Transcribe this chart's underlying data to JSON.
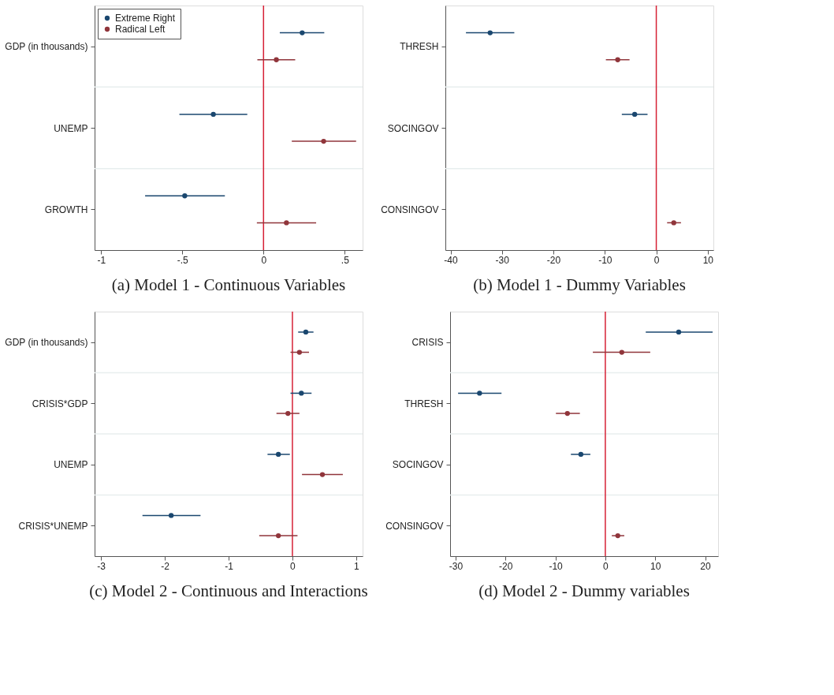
{
  "chart_data": [
    {
      "type": "scatter",
      "orientation": "horizontal",
      "title": "(a) Model 1 - Continuous Variables",
      "categories": [
        "GDP (in thousands)",
        "UNEMP",
        "GROWTH"
      ],
      "series": [
        {
          "name": "Extreme Right",
          "color": "#1a476f",
          "values": [
            0.238,
            -0.309,
            -0.485
          ],
          "errors": [
            [
              0.1,
              0.374
            ],
            [
              -0.518,
              -0.1
            ],
            [
              -0.729,
              -0.238
            ]
          ]
        },
        {
          "name": "Radical Left",
          "color": "#90353b",
          "values": [
            0.079,
            0.37,
            0.141
          ],
          "errors": [
            [
              -0.038,
              0.195
            ],
            [
              0.174,
              0.57
            ],
            [
              -0.041,
              0.324
            ]
          ]
        }
      ],
      "xlim": [
        -1.04,
        0.61
      ],
      "xticks": [
        -1,
        {
          "value": -0.5,
          "label": "-.5"
        },
        0,
        {
          "value": 0.5,
          "label": ".5"
        }
      ],
      "ref_lines": [
        {
          "axis": "x",
          "value": 0,
          "color": "#d62035"
        }
      ],
      "grid": "y",
      "legend": "top left"
    },
    {
      "type": "scatter",
      "orientation": "horizontal",
      "title": "(b) Model 1 - Dummy Variables",
      "categories": [
        "THRESH",
        "SOCINGOV",
        "CONSINGOV"
      ],
      "series": [
        {
          "color": "#1a476f",
          "values": [
            -32.3,
            -4.2,
            null
          ],
          "errors": [
            [
              -37.0,
              -27.6
            ],
            [
              -6.7,
              -1.7
            ],
            null
          ]
        },
        {
          "color": "#90353b",
          "values": [
            -7.5,
            null,
            3.4
          ],
          "errors": [
            [
              -9.8,
              -5.2
            ],
            null,
            [
              2.1,
              4.8
            ]
          ]
        }
      ],
      "xlim": [
        -41.0,
        11.1
      ],
      "xticks": [
        -40,
        -30,
        -20,
        -10,
        0,
        10
      ],
      "ref_lines": [
        {
          "axis": "x",
          "value": 0,
          "color": "#d62035"
        }
      ],
      "grid": "y"
    },
    {
      "type": "scatter",
      "orientation": "horizontal",
      "title": "(c) Model 2 - Continuous and Interactions",
      "categories": [
        "GDP (in thousands)",
        "CRISIS*GDP",
        "UNEMP",
        "CRISIS*UNEMP"
      ],
      "series": [
        {
          "color": "#1a476f",
          "values": [
            0.21,
            0.14,
            -0.22,
            -1.9
          ],
          "errors": [
            [
              0.09,
              0.33
            ],
            [
              -0.03,
              0.3
            ],
            [
              -0.39,
              -0.04
            ],
            [
              -2.35,
              -1.44
            ]
          ]
        },
        {
          "color": "#90353b",
          "values": [
            0.11,
            -0.07,
            0.47,
            -0.22
          ],
          "errors": [
            [
              -0.03,
              0.26
            ],
            [
              -0.25,
              0.11
            ],
            [
              0.15,
              0.79
            ],
            [
              -0.52,
              0.08
            ]
          ]
        }
      ],
      "xlim": [
        -3.1,
        1.1
      ],
      "xticks": [
        -3,
        -2,
        -1,
        0,
        1
      ],
      "ref_lines": [
        {
          "axis": "x",
          "value": 0,
          "color": "#d62035"
        }
      ],
      "grid": "y"
    },
    {
      "type": "scatter",
      "orientation": "horizontal",
      "title": "(d) Model 2 - Dummy variables",
      "categories": [
        "CRISIS",
        "THRESH",
        "SOCINGOV",
        "CONSINGOV"
      ],
      "series": [
        {
          "color": "#1a476f",
          "values": [
            14.7,
            -25.2,
            -4.9,
            null
          ],
          "errors": [
            [
              8.1,
              21.5
            ],
            [
              -29.5,
              -20.8
            ],
            [
              -6.9,
              -3.0
            ],
            null
          ]
        },
        {
          "color": "#90353b",
          "values": [
            3.3,
            -7.6,
            null,
            2.5
          ],
          "errors": [
            [
              -2.5,
              9.0
            ],
            [
              -9.9,
              -5.1
            ],
            null,
            [
              1.3,
              3.8
            ]
          ]
        }
      ],
      "xlim": [
        -31.1,
        22.6
      ],
      "xticks": [
        -30,
        -20,
        -10,
        0,
        10,
        20
      ],
      "ref_lines": [
        {
          "axis": "x",
          "value": 0,
          "color": "#d62035"
        }
      ],
      "grid": "y"
    }
  ]
}
